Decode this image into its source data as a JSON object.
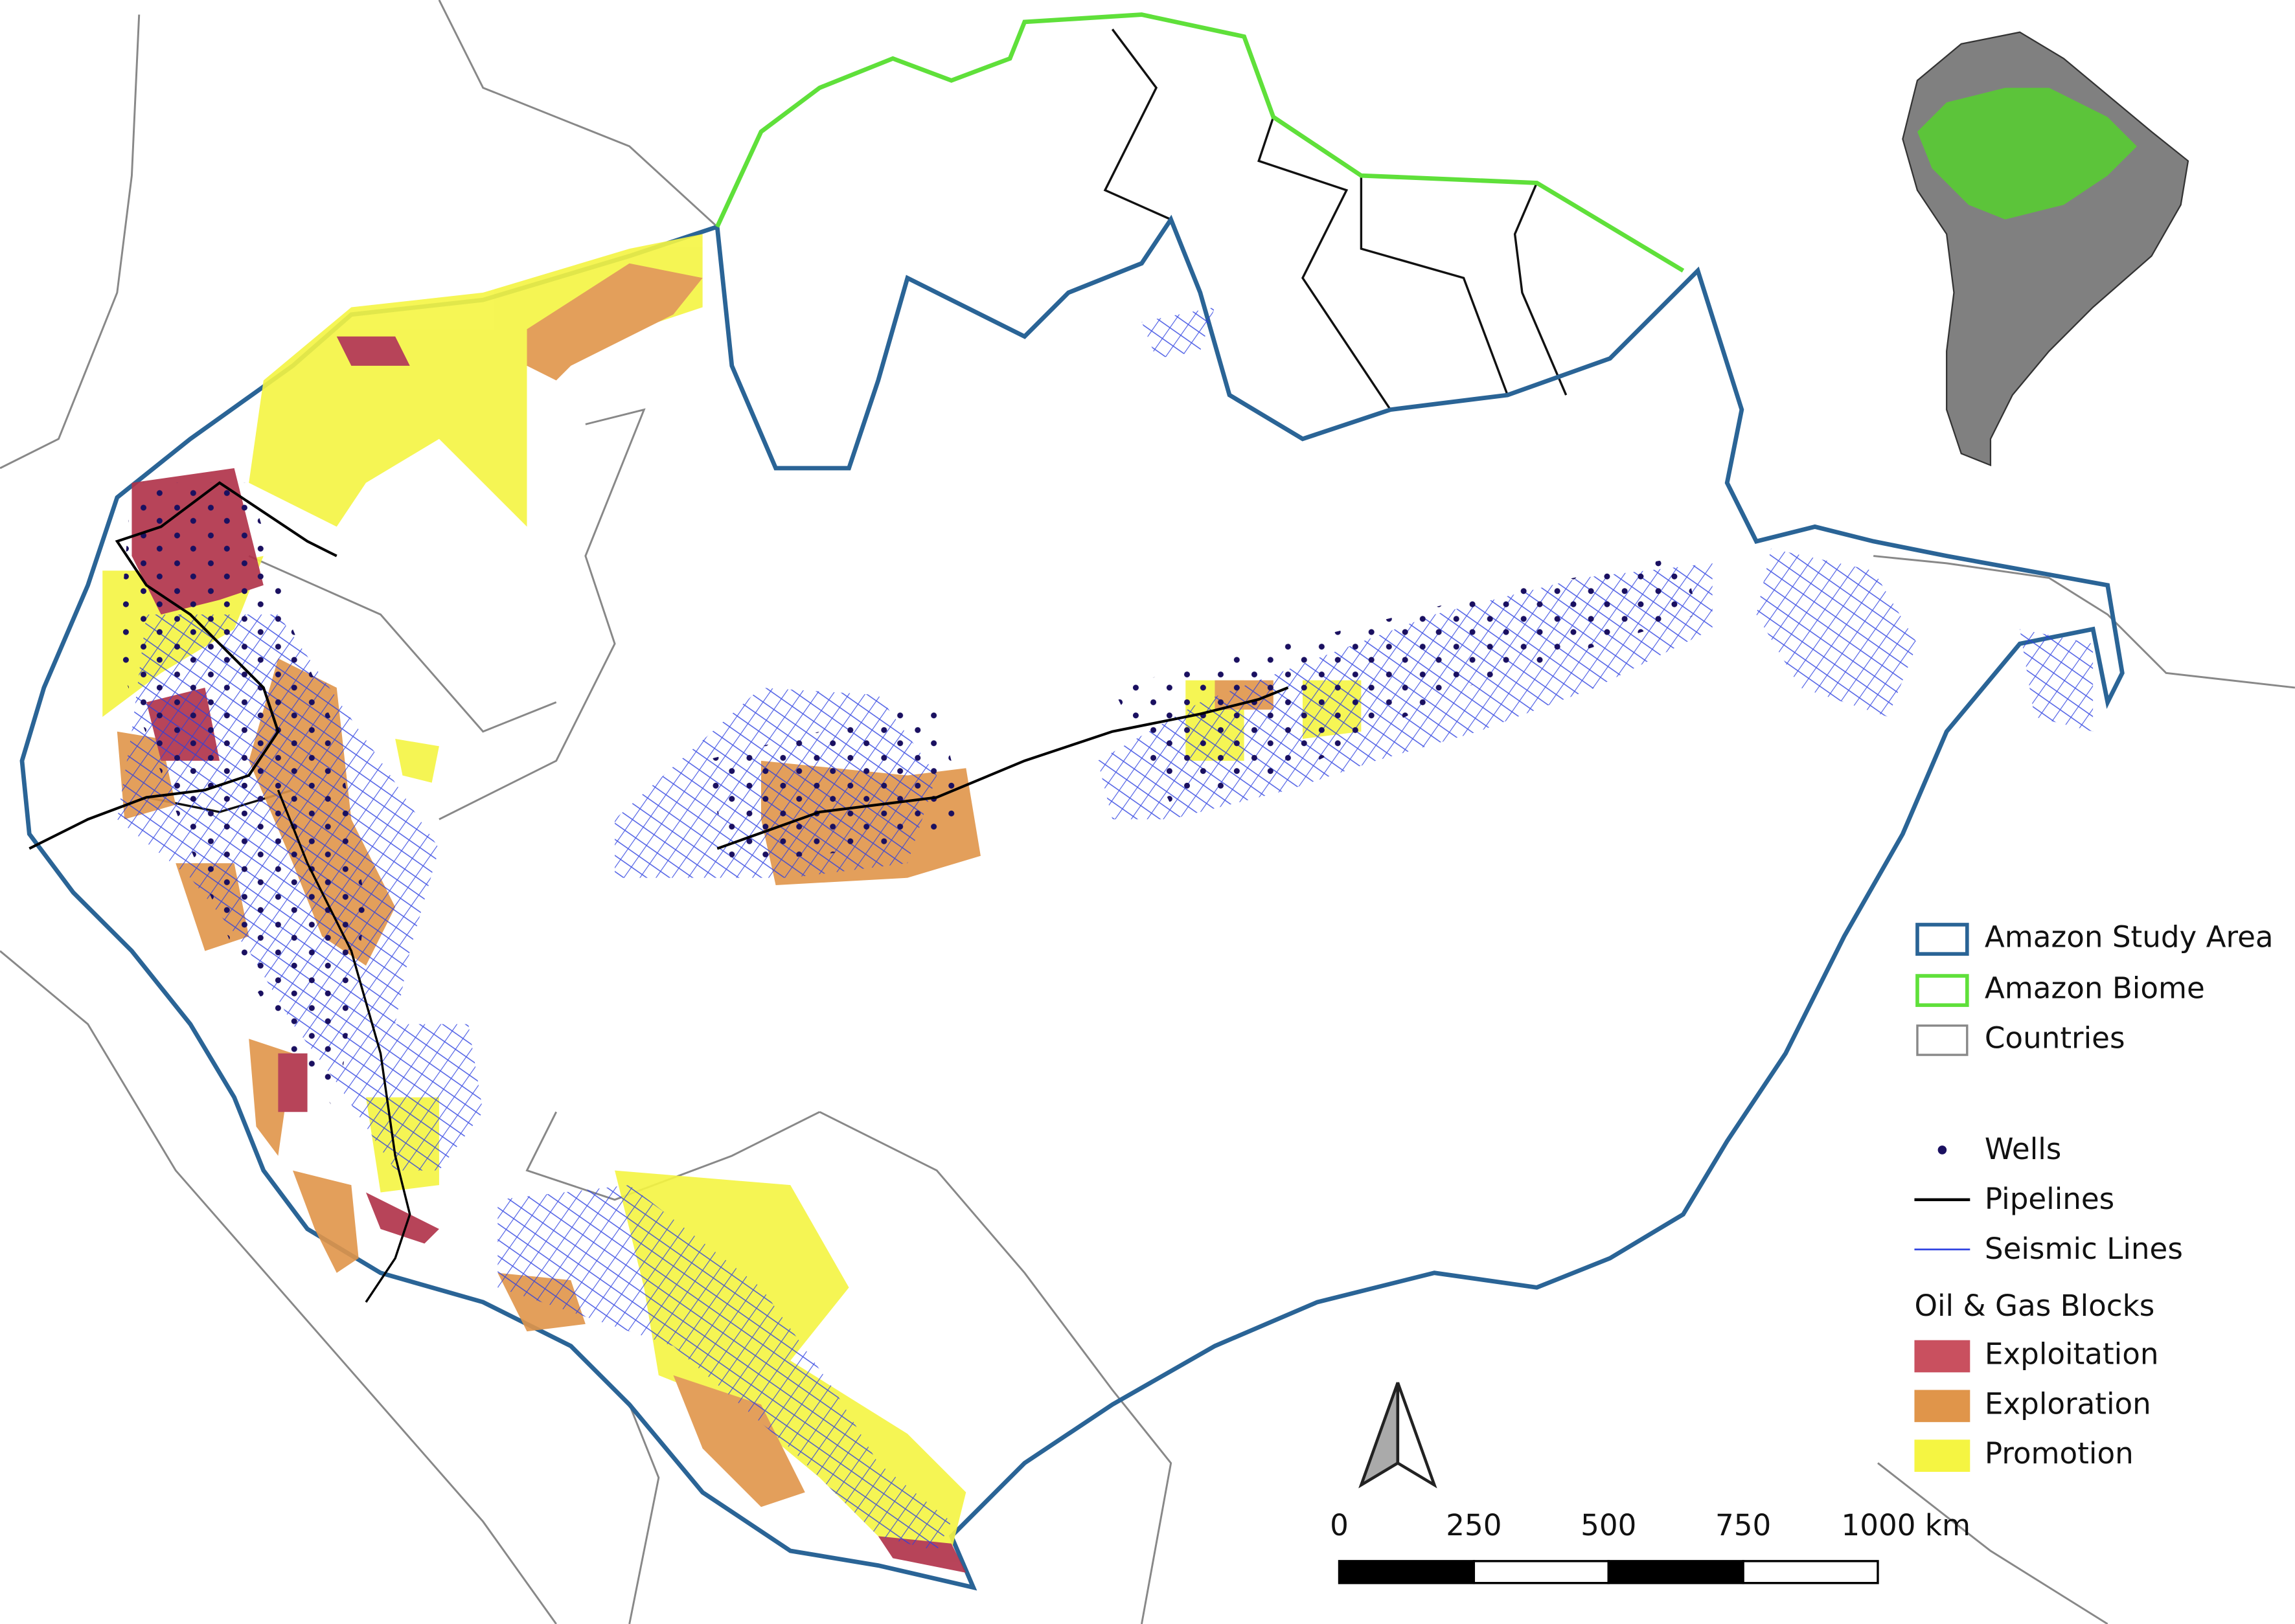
{
  "legend": {
    "items": [
      "Amazon Study Area",
      "Amazon Biome",
      "Countries",
      "Wells",
      "Pipelines",
      "Seismic Lines"
    ],
    "blocks_title": "Oil & Gas Blocks",
    "blocks": [
      "Exploitation",
      "Exploration",
      "Promotion"
    ]
  },
  "scale_bar": {
    "labels": [
      "0",
      "250",
      "500",
      "750",
      "1000 km"
    ]
  }
}
